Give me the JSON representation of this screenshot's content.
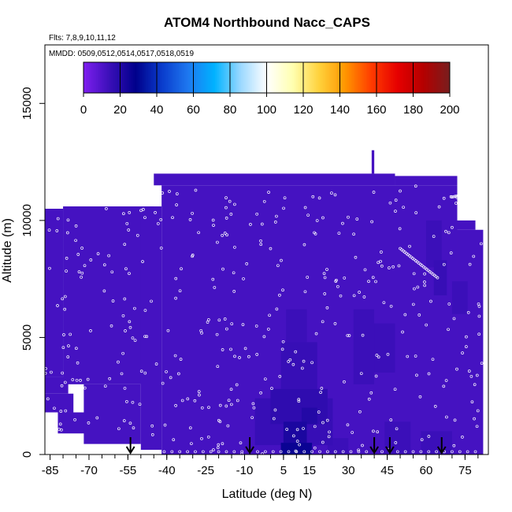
{
  "chart_data": {
    "type": "heatmap",
    "title": "ATOM4 Northbound Nacc_CAPS",
    "flights_note": "Flts: 7,8,9,10,11,12",
    "dates_note": "MMDD: 0509,0512,0514,0517,0518,0519",
    "xlabel": "Latitude (deg N)",
    "ylabel": "Altitude (m)",
    "xlim": [
      -87,
      84
    ],
    "ylim": [
      0,
      17500
    ],
    "x_ticks": [
      -85,
      -70,
      -55,
      -40,
      -25,
      -10,
      5,
      15,
      30,
      45,
      60,
      75
    ],
    "y_ticks": [
      0,
      5000,
      10000,
      15000
    ],
    "colorbar": {
      "range": [
        0,
        200
      ],
      "ticks": [
        0,
        20,
        40,
        60,
        80,
        100,
        120,
        140,
        160,
        180,
        200
      ],
      "colors": [
        "#7f1ff0",
        "#3a0fb8",
        "#00008b",
        "#0a3ccc",
        "#1e78f0",
        "#00b2ff",
        "#9ad8ff",
        "#ffffff",
        "#ffffb0",
        "#ffd23c",
        "#ff9600",
        "#ff3c00",
        "#e60000",
        "#b40000",
        "#781e1e"
      ]
    },
    "background_value": 12,
    "coverage": [
      {
        "x0": -87,
        "x1": -80,
        "y0": 3300,
        "y1": 10500
      },
      {
        "x0": -87,
        "x1": -78,
        "y0": 2600,
        "y1": 3300
      },
      {
        "x0": -87,
        "x1": -76,
        "y0": 1800,
        "y1": 2600
      },
      {
        "x0": -82,
        "x1": -70,
        "y0": 900,
        "y1": 1800
      },
      {
        "x0": -80,
        "x1": -45,
        "y0": 3000,
        "y1": 10600
      },
      {
        "x0": -72,
        "x1": -50,
        "y0": 450,
        "y1": 3000
      },
      {
        "x0": -50,
        "x1": -42,
        "y0": 200,
        "y1": 10600
      },
      {
        "x0": -42,
        "x1": 72,
        "y0": 0,
        "y1": 11500
      },
      {
        "x0": -45,
        "x1": 48,
        "y0": 11500,
        "y1": 12000
      },
      {
        "x0": 39,
        "x1": 40,
        "y0": 12000,
        "y1": 13000
      },
      {
        "x0": 48,
        "x1": 72,
        "y0": 11500,
        "y1": 11900
      },
      {
        "x0": 72,
        "x1": 82,
        "y0": 0,
        "y1": 9600
      },
      {
        "x0": 72,
        "x1": 79,
        "y0": 9600,
        "y1": 10000
      }
    ],
    "cells": [
      {
        "x0": 4,
        "x1": 16,
        "y0": 0,
        "y1": 500,
        "v": 26
      },
      {
        "x0": 5,
        "x1": 14,
        "y0": 500,
        "y1": 1400,
        "v": 22
      },
      {
        "x0": 7,
        "x1": 12,
        "y0": 400,
        "y1": 1000,
        "v": 20
      },
      {
        "x0": 12,
        "x1": 18,
        "y0": 1300,
        "y1": 2000,
        "v": 20
      },
      {
        "x0": 0,
        "x1": 22,
        "y0": 1300,
        "y1": 2800,
        "v": 17
      },
      {
        "x0": -6,
        "x1": 24,
        "y0": 400,
        "y1": 2400,
        "v": 15
      },
      {
        "x0": 4,
        "x1": 18,
        "y0": 2800,
        "y1": 4800,
        "v": 15
      },
      {
        "x0": 6,
        "x1": 14,
        "y0": 4800,
        "y1": 6200,
        "v": 14
      },
      {
        "x0": 22,
        "x1": 30,
        "y0": 0,
        "y1": 700,
        "v": 14
      },
      {
        "x0": 32,
        "x1": 40,
        "y0": 3000,
        "y1": 6200,
        "v": 14
      },
      {
        "x0": 36,
        "x1": 48,
        "y0": 3500,
        "y1": 5600,
        "v": 14
      },
      {
        "x0": 44,
        "x1": 54,
        "y0": 0,
        "y1": 1400,
        "v": 14
      },
      {
        "x0": 58,
        "x1": 70,
        "y0": 0,
        "y1": 1000,
        "v": 14
      },
      {
        "x0": 60,
        "x1": 66,
        "y0": 8000,
        "y1": 10000,
        "v": 14
      },
      {
        "x0": 63,
        "x1": 68,
        "y0": 6800,
        "y1": 8300,
        "v": 15
      },
      {
        "x0": 70,
        "x1": 76,
        "y0": 6000,
        "y1": 7400,
        "v": 14
      }
    ],
    "arrows_x": [
      -54,
      -8,
      40,
      46,
      66
    ]
  }
}
